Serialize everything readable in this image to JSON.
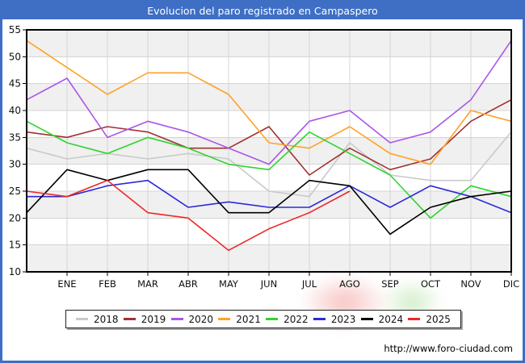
{
  "title": "Evolucion del paro registrado en Campaspero",
  "footer": {
    "url": "http://www.foro-ciudad.com"
  },
  "colors": {
    "frame_blue": "#3e6fc4",
    "title_text": "#ffffff",
    "plot_border": "#000000",
    "grid": "#d4d4d4",
    "band_gray": "#f0f0f0",
    "band_white": "#ffffff",
    "axis_text": "#111111"
  },
  "chart_data": {
    "type": "line",
    "title": "Evolucion del paro registrado en Campaspero",
    "x_tick_labels": [
      "ENE",
      "FEB",
      "MAR",
      "ABR",
      "MAY",
      "JUN",
      "JUL",
      "AGO",
      "SEP",
      "OCT",
      "NOV",
      "DIC"
    ],
    "x_note": "each series has a leading unlabeled point (previous-year December) plotted at the left axis, then one point per labeled month",
    "ylim": [
      10,
      55
    ],
    "y_ticks": [
      55,
      50,
      45,
      40,
      35,
      30,
      25,
      20,
      15,
      10
    ],
    "grid": true,
    "legend_position": "bottom",
    "series": [
      {
        "name": "2018",
        "color": "#c9c9c9",
        "values": [
          33,
          31,
          32,
          31,
          32,
          31,
          25,
          24,
          34,
          28,
          27,
          27,
          36
        ]
      },
      {
        "name": "2019",
        "color": "#a03232",
        "values": [
          36,
          35,
          37,
          36,
          33,
          33,
          37,
          28,
          33,
          29,
          31,
          38,
          42
        ]
      },
      {
        "name": "2020",
        "color": "#ab55e8",
        "values": [
          42,
          46,
          35,
          38,
          36,
          33,
          30,
          38,
          40,
          34,
          36,
          42,
          53
        ]
      },
      {
        "name": "2021",
        "color": "#ffa226",
        "values": [
          53,
          48,
          43,
          47,
          47,
          43,
          34,
          33,
          37,
          32,
          30,
          40,
          38
        ]
      },
      {
        "name": "2022",
        "color": "#2fd42f",
        "values": [
          38,
          34,
          32,
          35,
          33,
          30,
          29,
          36,
          32,
          28,
          20,
          26,
          24
        ]
      },
      {
        "name": "2023",
        "color": "#2a2ad9",
        "values": [
          24,
          24,
          26,
          27,
          22,
          23,
          22,
          22,
          26,
          22,
          26,
          24,
          21
        ]
      },
      {
        "name": "2024",
        "color": "#000000",
        "values": [
          21,
          29,
          27,
          29,
          29,
          21,
          21,
          27,
          26,
          17,
          22,
          24,
          25
        ]
      },
      {
        "name": "2025",
        "color": "#ee2828",
        "values": [
          25,
          24,
          27,
          21,
          20,
          14,
          18,
          21,
          25
        ]
      }
    ]
  }
}
